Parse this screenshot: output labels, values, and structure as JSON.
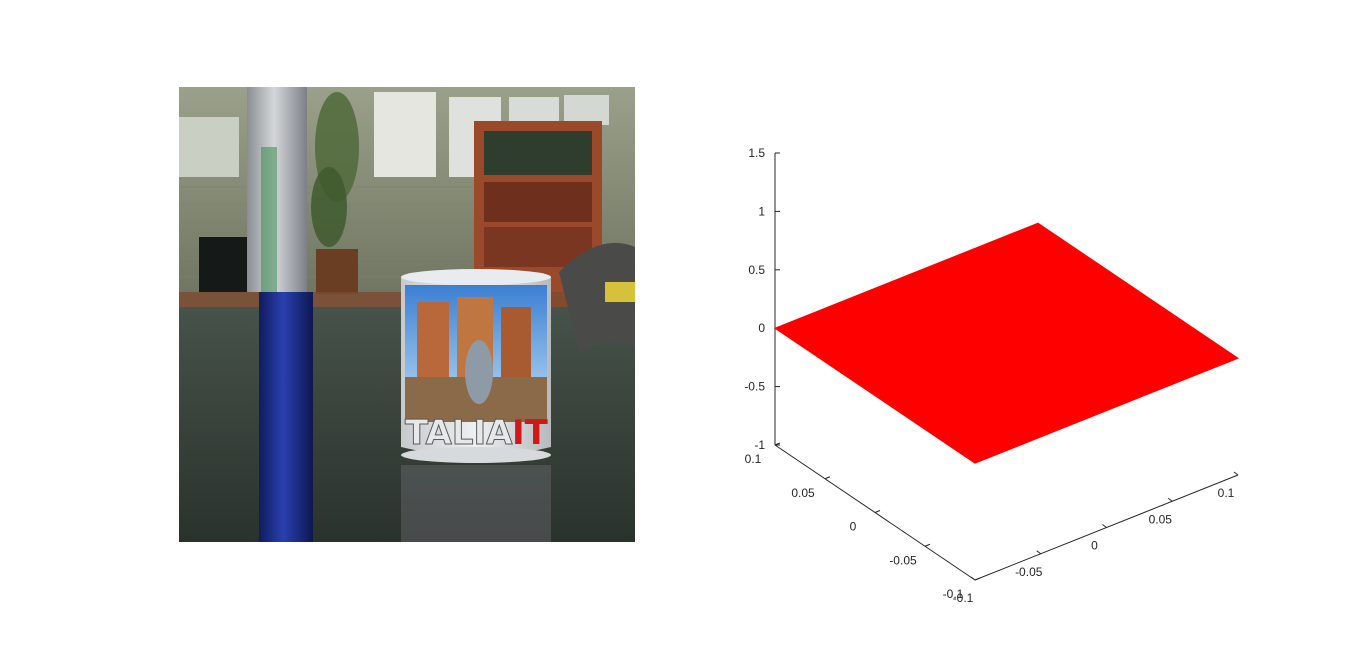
{
  "photo": {
    "mug_text": "TALIA",
    "mug_text_accent": "IT",
    "colors": {
      "wall": "#8a8f7a",
      "floor": "#2f3a30",
      "shelf": "#9a4a2a",
      "pen_white": "#b9bcc0",
      "pen_blue": "#1a2d8a",
      "mug_white": "#dfe3e6",
      "accent_red": "#d01818"
    }
  },
  "chart_data": {
    "type": "surface3d",
    "title": "",
    "xlabel": "",
    "ylabel": "",
    "zlabel": "",
    "xlim": [
      -0.1,
      0.1
    ],
    "ylim": [
      -0.1,
      0.1
    ],
    "zlim": [
      -1,
      1.5
    ],
    "grid": false,
    "surface": {
      "color": "#ff0000",
      "x": [
        -0.1,
        0.1
      ],
      "y": [
        -0.1,
        0.1
      ],
      "z": [
        [
          0,
          0
        ],
        [
          0,
          0
        ]
      ]
    },
    "x_ticks": [
      "-0.1",
      "-0.05",
      "0",
      "0.05",
      "0.1"
    ],
    "x_tick_values": [
      -0.1,
      -0.05,
      0,
      0.05,
      0.1
    ],
    "y_ticks": [
      "-0.1",
      "-0.05",
      "0",
      "0.05",
      "0.1"
    ],
    "y_tick_values": [
      -0.1,
      -0.05,
      0,
      0.05,
      0.1
    ],
    "z_ticks": [
      "-1",
      "-0.5",
      "0",
      "0.5",
      "1",
      "1.5"
    ],
    "z_tick_values": [
      -1,
      -0.5,
      0,
      0.5,
      1,
      1.5
    ]
  }
}
